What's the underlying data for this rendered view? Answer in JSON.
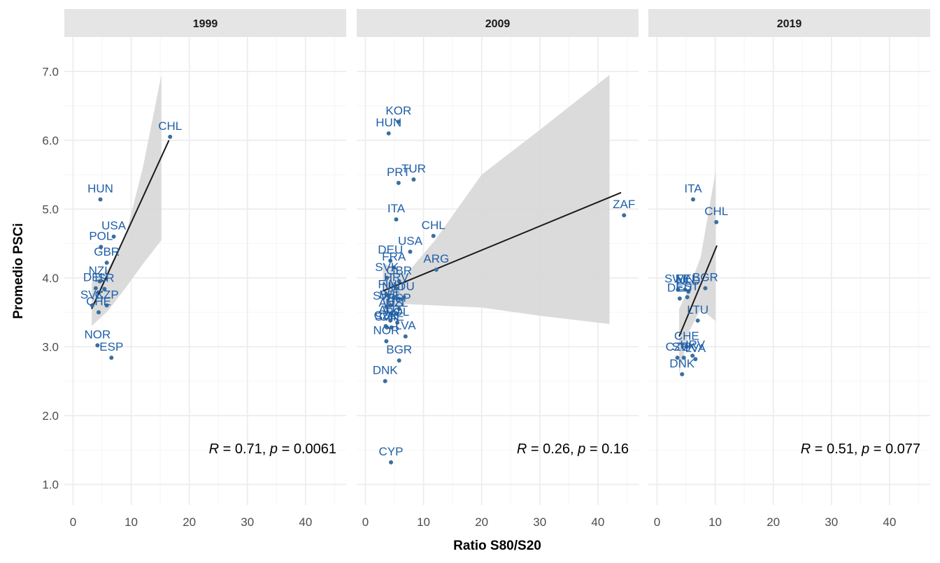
{
  "chart_data": {
    "type": "scatter",
    "xlabel": "Ratio S80/S20",
    "ylabel": "Promedio PSCi",
    "xlim": [
      -1.5,
      47
    ],
    "ylim": [
      0.7,
      7.5
    ],
    "x_ticks": [
      0,
      10,
      20,
      30,
      40
    ],
    "y_ticks": [
      1.0,
      2.0,
      3.0,
      4.0,
      5.0,
      6.0,
      7.0
    ],
    "grid": true,
    "colors": {
      "point": "#3a6f9e",
      "label": "#1f5fa8",
      "line": "#1a1a1a",
      "band": "#d9d9d9",
      "strip": "#e5e5e5",
      "grid": "#ebebeb"
    },
    "panels": [
      {
        "title": "1999",
        "stat": {
          "R": "0.71",
          "p": "0.0061"
        },
        "fit": {
          "x0": 3.2,
          "y0": 3.55,
          "x1": 16.5,
          "y1": 6.0
        },
        "band": {
          "upper": [
            [
              3.2,
              3.93
            ],
            [
              6,
              4.13
            ],
            [
              9,
              4.6
            ],
            [
              12,
              5.6
            ],
            [
              15.2,
              6.95
            ]
          ],
          "lower": [
            [
              15.2,
              4.55
            ],
            [
              12,
              4.2
            ],
            [
              9,
              3.85
            ],
            [
              6,
              3.52
            ],
            [
              3.2,
              3.3
            ]
          ]
        },
        "points": [
          {
            "label": "CHL",
            "x": 16.7,
            "y": 6.05
          },
          {
            "label": "HUN",
            "x": 4.7,
            "y": 5.14
          },
          {
            "label": "USA",
            "x": 7.0,
            "y": 4.6
          },
          {
            "label": "POL",
            "x": 4.8,
            "y": 4.45
          },
          {
            "label": "GBR",
            "x": 5.8,
            "y": 4.22
          },
          {
            "label": "NZL",
            "x": 4.6,
            "y": 3.95
          },
          {
            "label": "DEU",
            "x": 3.9,
            "y": 3.85
          },
          {
            "label": "ISR",
            "x": 5.4,
            "y": 3.84
          },
          {
            "label": "SVK",
            "x": 3.3,
            "y": 3.6
          },
          {
            "label": "CZP",
            "x": 5.8,
            "y": 3.6
          },
          {
            "label": "CHE",
            "x": 4.4,
            "y": 3.5
          },
          {
            "label": "NOR",
            "x": 4.2,
            "y": 3.02
          },
          {
            "label": "ESP",
            "x": 6.6,
            "y": 2.84
          }
        ]
      },
      {
        "title": "2009",
        "stat": {
          "R": "0.26",
          "p": "0.16"
        },
        "fit": {
          "x0": 3.0,
          "y0": 3.81,
          "x1": 44.0,
          "y1": 5.24
        },
        "band": {
          "upper": [
            [
              3,
              4.22
            ],
            [
              7,
              4.05
            ],
            [
              12,
              4.55
            ],
            [
              20,
              5.5
            ],
            [
              30,
              6.15
            ],
            [
              42,
              6.95
            ]
          ],
          "lower": [
            [
              42,
              3.33
            ],
            [
              30,
              3.45
            ],
            [
              20,
              3.57
            ],
            [
              12,
              3.6
            ],
            [
              7,
              3.62
            ],
            [
              3,
              3.42
            ]
          ]
        },
        "points": [
          {
            "label": "KOR",
            "x": 5.7,
            "y": 6.27
          },
          {
            "label": "HUN",
            "x": 4.0,
            "y": 6.1
          },
          {
            "label": "TUR",
            "x": 8.3,
            "y": 5.43
          },
          {
            "label": "PRT",
            "x": 5.7,
            "y": 5.38
          },
          {
            "label": "ITA",
            "x": 5.3,
            "y": 4.85
          },
          {
            "label": "CHL",
            "x": 11.7,
            "y": 4.61
          },
          {
            "label": "USA",
            "x": 7.7,
            "y": 4.38
          },
          {
            "label": "ARG",
            "x": 12.2,
            "y": 4.12
          },
          {
            "label": "ZAF",
            "x": 44.5,
            "y": 4.91
          },
          {
            "label": "DEU",
            "x": 4.3,
            "y": 4.25
          },
          {
            "label": "FRA",
            "x": 4.9,
            "y": 4.15
          },
          {
            "label": "SVK",
            "x": 3.7,
            "y": 4.0
          },
          {
            "label": "GBR",
            "x": 5.8,
            "y": 3.95
          },
          {
            "label": "HRV",
            "x": 5.3,
            "y": 3.85
          },
          {
            "label": "FIN",
            "x": 3.8,
            "y": 3.75
          },
          {
            "label": "NLD",
            "x": 4.9,
            "y": 3.72
          },
          {
            "label": "LTU",
            "x": 6.6,
            "y": 3.72
          },
          {
            "label": "SWE",
            "x": 3.6,
            "y": 3.58
          },
          {
            "label": "BEL",
            "x": 4.3,
            "y": 3.6
          },
          {
            "label": "ESP",
            "x": 5.8,
            "y": 3.55
          },
          {
            "label": "AUS",
            "x": 4.4,
            "y": 3.48
          },
          {
            "label": "NZL",
            "x": 5.4,
            "y": 3.48
          },
          {
            "label": "AUT",
            "x": 4.3,
            "y": 3.38
          },
          {
            "label": "POL",
            "x": 5.5,
            "y": 3.35
          },
          {
            "label": "CZE",
            "x": 3.5,
            "y": 3.3
          },
          {
            "label": "SVN",
            "x": 3.7,
            "y": 3.28
          },
          {
            "label": "CHE",
            "x": 4.5,
            "y": 3.28
          },
          {
            "label": "LVA",
            "x": 6.9,
            "y": 3.15
          },
          {
            "label": "NOR",
            "x": 3.6,
            "y": 3.08
          },
          {
            "label": "BGR",
            "x": 5.8,
            "y": 2.8
          },
          {
            "label": "DNK",
            "x": 3.4,
            "y": 2.5
          },
          {
            "label": "CYP",
            "x": 4.4,
            "y": 1.32
          }
        ]
      },
      {
        "title": "2019",
        "stat": {
          "R": "0.51",
          "p": "0.077"
        },
        "fit": {
          "x0": 3.8,
          "y0": 3.15,
          "x1": 10.3,
          "y1": 4.47
        },
        "band": {
          "upper": [
            [
              3.8,
              3.55
            ],
            [
              5.5,
              3.85
            ],
            [
              7.5,
              4.3
            ],
            [
              10.1,
              5.56
            ]
          ],
          "lower": [
            [
              10.1,
              3.37
            ],
            [
              7.5,
              3.55
            ],
            [
              5.5,
              3.22
            ],
            [
              3.8,
              2.6
            ]
          ]
        },
        "points": [
          {
            "label": "ITA",
            "x": 6.2,
            "y": 5.14
          },
          {
            "label": "CHL",
            "x": 10.2,
            "y": 4.81
          },
          {
            "label": "SWE",
            "x": 3.6,
            "y": 3.83
          },
          {
            "label": "FIN",
            "x": 4.8,
            "y": 3.83
          },
          {
            "label": "NLD",
            "x": 5.4,
            "y": 3.8
          },
          {
            "label": "BGR",
            "x": 8.3,
            "y": 3.85
          },
          {
            "label": "DEU",
            "x": 3.9,
            "y": 3.7
          },
          {
            "label": "EST",
            "x": 5.2,
            "y": 3.72
          },
          {
            "label": "LTU",
            "x": 7.0,
            "y": 3.38
          },
          {
            "label": "CHE",
            "x": 5.1,
            "y": 3.0
          },
          {
            "label": "CZE",
            "x": 3.5,
            "y": 2.84
          },
          {
            "label": "SVK",
            "x": 4.6,
            "y": 2.84
          },
          {
            "label": "HRV",
            "x": 6.1,
            "y": 2.87
          },
          {
            "label": "LVA",
            "x": 6.6,
            "y": 2.82
          },
          {
            "label": "DNK",
            "x": 4.3,
            "y": 2.6
          }
        ]
      }
    ]
  }
}
